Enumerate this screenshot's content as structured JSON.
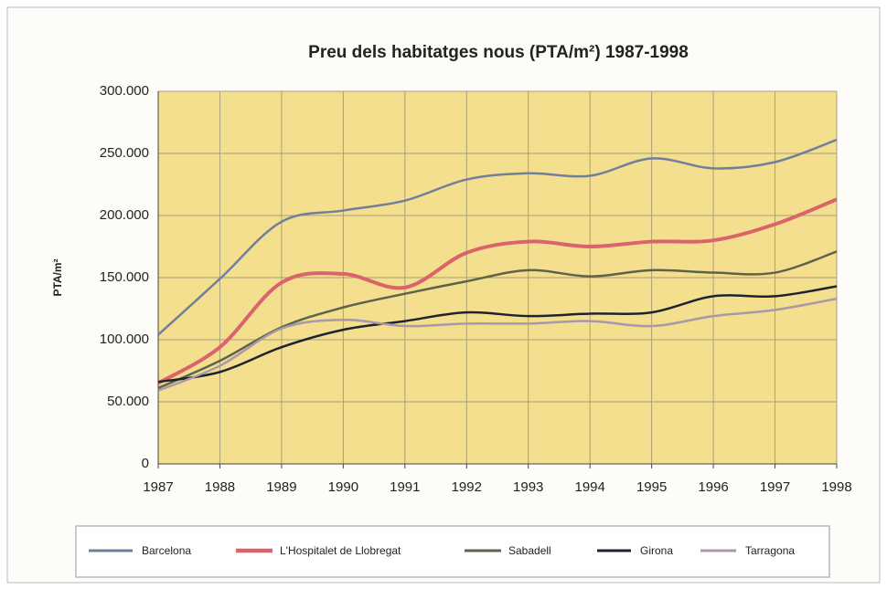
{
  "chart_data": {
    "type": "line",
    "title": "Preu dels habitatges nous (PTA/m²) 1987-1998",
    "y_label": "PTA/m²",
    "categories": [
      "1987",
      "1988",
      "1989",
      "1990",
      "1991",
      "1992",
      "1993",
      "1994",
      "1995",
      "1996",
      "1997",
      "1998"
    ],
    "series": [
      {
        "name": "Barcelona",
        "color": "#71809a",
        "width": 2.5,
        "values": [
          104000,
          149000,
          195000,
          204000,
          212000,
          229000,
          234000,
          232000,
          246000,
          238000,
          243000,
          261000
        ]
      },
      {
        "name": "L'Hospitalet de Llobregat",
        "color": "#d9646b",
        "width": 4,
        "values": [
          65000,
          94000,
          146000,
          153000,
          142000,
          170000,
          179000,
          175000,
          179000,
          180000,
          193000,
          213000
        ]
      },
      {
        "name": "Sabadell",
        "color": "#5c6449",
        "width": 2.5,
        "values": [
          61000,
          83000,
          110000,
          126000,
          137000,
          147000,
          156000,
          151000,
          156000,
          154000,
          154000,
          171000
        ]
      },
      {
        "name": "Girona",
        "color": "#1f2331",
        "width": 2.5,
        "values": [
          66000,
          74000,
          94000,
          108000,
          115000,
          122000,
          119000,
          121000,
          122000,
          135000,
          135000,
          143000
        ]
      },
      {
        "name": "Tarragona",
        "color": "#a998aa",
        "width": 2.5,
        "values": [
          59000,
          79000,
          109000,
          116000,
          111000,
          113000,
          113000,
          115000,
          111000,
          119000,
          124000,
          133000
        ]
      }
    ],
    "ylim": [
      0,
      300000
    ],
    "yticks": [
      0,
      {
        "value": 50000,
        "label": "50.000"
      },
      {
        "value": 100000,
        "label": "100.000"
      },
      {
        "value": 150000,
        "label": "150.000"
      },
      {
        "value": 200000,
        "label": "200.000"
      },
      {
        "value": 250000,
        "label": "250.000"
      },
      {
        "value": 300000,
        "label": "300.000"
      }
    ],
    "grid": true,
    "legend": "bottom",
    "plot_background": "#f4df8f"
  }
}
